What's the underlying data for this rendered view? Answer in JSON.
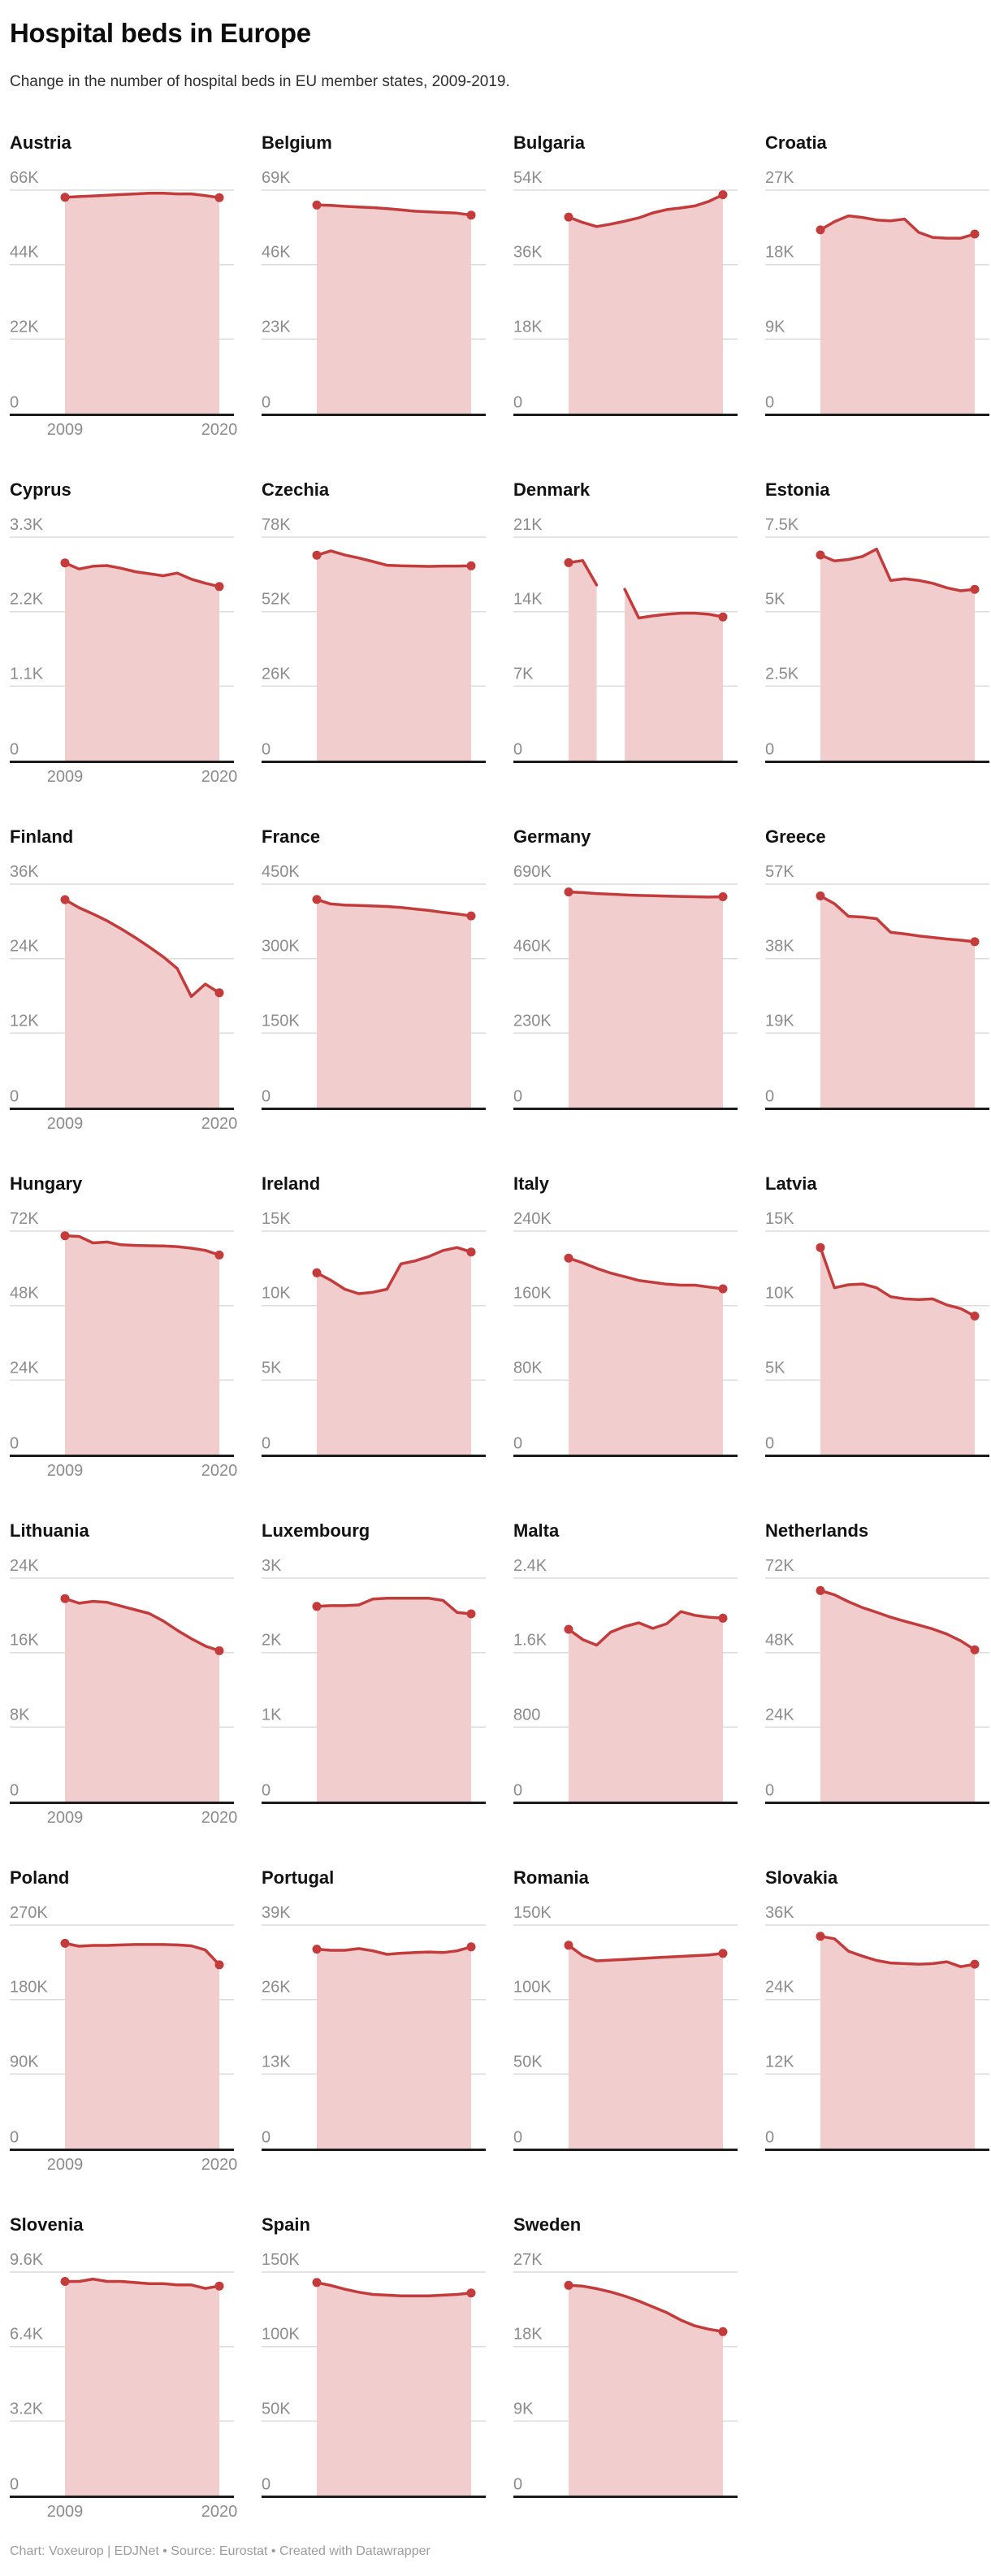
{
  "header": {
    "title": "Hospital beds in Europe",
    "subtitle": "Change in the number of hospital beds in EU member states, 2009-2019."
  },
  "axis": {
    "start_year": "2009",
    "end_year": "2020"
  },
  "footer": {
    "text": "Chart: Voxeurop | EDJNet • Source: Eurostat • Created with Datawrapper"
  },
  "colors": {
    "line": "#c43b3c",
    "fill": "#f1cdcd",
    "grid": "#dcdcdc",
    "baseline": "#1c1c1c",
    "tick_text": "#8c8c8c"
  },
  "chart_data": {
    "type": "area",
    "x": [
      2009,
      2010,
      2011,
      2012,
      2013,
      2014,
      2015,
      2016,
      2017,
      2018,
      2019,
      2020
    ],
    "unit": "thousands_of_beds",
    "legend_position": "none",
    "grid": true,
    "charts": [
      {
        "name": "Austria",
        "ticks": [
          "66K",
          "44K",
          "22K",
          "0"
        ],
        "ymax": 66,
        "values": [
          63.9,
          64.1,
          64.3,
          64.5,
          64.7,
          64.9,
          65.1,
          65.1,
          64.9,
          64.9,
          64.4,
          63.8
        ]
      },
      {
        "name": "Belgium",
        "ticks": [
          "69K",
          "46K",
          "23K",
          "0"
        ],
        "ymax": 69,
        "values": [
          64.4,
          64.3,
          64.0,
          63.8,
          63.6,
          63.3,
          62.9,
          62.5,
          62.3,
          62.1,
          61.9,
          61.3
        ]
      },
      {
        "name": "Bulgaria",
        "ticks": [
          "54K",
          "36K",
          "18K",
          "0"
        ],
        "ymax": 54,
        "values": [
          47.5,
          46.2,
          45.2,
          45.8,
          46.5,
          47.3,
          48.5,
          49.3,
          49.7,
          50.2,
          51.3,
          52.9
        ]
      },
      {
        "name": "Croatia",
        "ticks": [
          "27K",
          "18K",
          "9K",
          "0"
        ],
        "ymax": 27,
        "values": [
          22.2,
          23.2,
          23.9,
          23.7,
          23.4,
          23.3,
          23.5,
          21.9,
          21.3,
          21.2,
          21.2,
          21.7
        ]
      },
      {
        "name": "Cyprus",
        "ticks": [
          "3.3K",
          "2.2K",
          "1.1K",
          "0"
        ],
        "ymax": 3.3,
        "values": [
          2.92,
          2.83,
          2.87,
          2.88,
          2.84,
          2.79,
          2.76,
          2.73,
          2.77,
          2.68,
          2.62,
          2.57
        ]
      },
      {
        "name": "Czechia",
        "ticks": [
          "78K",
          "52K",
          "26K",
          "0"
        ],
        "ymax": 78,
        "values": [
          71.7,
          73.2,
          71.8,
          70.7,
          69.5,
          68.2,
          68.0,
          67.9,
          67.8,
          67.9,
          67.9,
          68.0
        ]
      },
      {
        "name": "Denmark",
        "ticks": [
          "21K",
          "14K",
          "7K",
          "0"
        ],
        "ymax": 21,
        "values": [
          18.6,
          18.8,
          16.5,
          null,
          16.1,
          13.4,
          13.6,
          13.75,
          13.85,
          13.85,
          13.75,
          13.5
        ]
      },
      {
        "name": "Estonia",
        "ticks": [
          "7.5K",
          "5K",
          "2.5K",
          "0"
        ],
        "ymax": 7.5,
        "values": [
          6.9,
          6.7,
          6.75,
          6.85,
          7.1,
          6.05,
          6.1,
          6.05,
          5.95,
          5.8,
          5.7,
          5.75
        ]
      },
      {
        "name": "Finland",
        "ticks": [
          "36K",
          "24K",
          "12K",
          "0"
        ],
        "ymax": 36,
        "values": [
          33.5,
          32.2,
          31.2,
          30.1,
          28.8,
          27.4,
          25.9,
          24.3,
          22.4,
          17.9,
          19.9,
          18.5
        ]
      },
      {
        "name": "France",
        "ticks": [
          "450K",
          "300K",
          "150K",
          "0"
        ],
        "ymax": 450,
        "values": [
          419,
          410,
          408,
          407,
          406,
          405,
          403,
          400,
          397,
          393,
          390,
          386
        ]
      },
      {
        "name": "Germany",
        "ticks": [
          "690K",
          "460K",
          "230K",
          "0"
        ],
        "ymax": 690,
        "values": [
          666,
          664,
          661,
          659,
          657,
          655,
          654,
          653,
          652,
          651,
          650,
          651
        ]
      },
      {
        "name": "Greece",
        "ticks": [
          "57K",
          "38K",
          "19K",
          "0"
        ],
        "ymax": 57,
        "values": [
          54.0,
          52.0,
          48.8,
          48.6,
          48.2,
          44.7,
          44.3,
          43.8,
          43.4,
          43.0,
          42.7,
          42.3
        ]
      },
      {
        "name": "Hungary",
        "ticks": [
          "72K",
          "48K",
          "24K",
          "0"
        ],
        "ymax": 72,
        "values": [
          70.5,
          70.3,
          68.2,
          68.5,
          67.6,
          67.4,
          67.3,
          67.2,
          67.0,
          66.5,
          65.8,
          64.3
        ]
      },
      {
        "name": "Ireland",
        "ticks": [
          "15K",
          "10K",
          "5K",
          "0"
        ],
        "ymax": 15,
        "values": [
          12.2,
          11.7,
          11.1,
          10.8,
          10.9,
          11.1,
          12.8,
          13.0,
          13.3,
          13.7,
          13.9,
          13.6
        ]
      },
      {
        "name": "Italy",
        "ticks": [
          "240K",
          "160K",
          "80K",
          "0"
        ],
        "ymax": 240,
        "values": [
          211,
          206,
          200,
          195,
          191,
          187,
          185,
          183,
          182,
          182,
          180,
          178
        ]
      },
      {
        "name": "Latvia",
        "ticks": [
          "15K",
          "10K",
          "5K",
          "0"
        ],
        "ymax": 15,
        "values": [
          13.9,
          11.2,
          11.4,
          11.45,
          11.2,
          10.6,
          10.45,
          10.4,
          10.45,
          10.05,
          9.8,
          9.3
        ]
      },
      {
        "name": "Lithuania",
        "ticks": [
          "24K",
          "16K",
          "8K",
          "0"
        ],
        "ymax": 24,
        "values": [
          21.8,
          21.3,
          21.5,
          21.4,
          21.0,
          20.6,
          20.2,
          19.4,
          18.4,
          17.5,
          16.7,
          16.2
        ]
      },
      {
        "name": "Luxembourg",
        "ticks": [
          "3K",
          "2K",
          "1K",
          "0"
        ],
        "ymax": 3,
        "values": [
          2.62,
          2.63,
          2.63,
          2.64,
          2.72,
          2.73,
          2.73,
          2.73,
          2.73,
          2.7,
          2.54,
          2.52
        ]
      },
      {
        "name": "Malta",
        "ticks": [
          "2.4K",
          "1.6K",
          "800",
          "0"
        ],
        "ymax": 2.4,
        "values": [
          1.85,
          1.74,
          1.68,
          1.82,
          1.88,
          1.92,
          1.86,
          1.91,
          2.04,
          2.0,
          1.98,
          1.97
        ]
      },
      {
        "name": "Netherlands",
        "ticks": [
          "72K",
          "48K",
          "24K",
          "0"
        ],
        "ymax": 72,
        "values": [
          68.0,
          66.6,
          64.4,
          62.5,
          61.0,
          59.4,
          58.1,
          56.9,
          55.6,
          54.0,
          51.8,
          48.9
        ]
      },
      {
        "name": "Poland",
        "ticks": [
          "270K",
          "180K",
          "90K",
          "0"
        ],
        "ymax": 270,
        "values": [
          248,
          244.5,
          245.5,
          245.5,
          246,
          246.5,
          246.5,
          246.5,
          246,
          245,
          240,
          222
        ]
      },
      {
        "name": "Portugal",
        "ticks": [
          "39K",
          "26K",
          "13K",
          "0"
        ],
        "ymax": 39,
        "values": [
          34.8,
          34.6,
          34.6,
          34.9,
          34.5,
          33.9,
          34.1,
          34.2,
          34.3,
          34.2,
          34.5,
          35.2
        ]
      },
      {
        "name": "Romania",
        "ticks": [
          "150K",
          "100K",
          "50K",
          "0"
        ],
        "ymax": 150,
        "values": [
          136.5,
          129.5,
          126,
          126.5,
          127,
          127.5,
          128,
          128.5,
          129,
          129.5,
          130,
          131
        ]
      },
      {
        "name": "Slovakia",
        "ticks": [
          "36K",
          "24K",
          "12K",
          "0"
        ],
        "ymax": 36,
        "values": [
          34.2,
          33.8,
          31.8,
          31.0,
          30.3,
          29.9,
          29.8,
          29.7,
          29.8,
          30.1,
          29.3,
          29.7
        ]
      },
      {
        "name": "Slovenia",
        "ticks": [
          "9.6K",
          "6.4K",
          "3.2K",
          "0"
        ],
        "ymax": 9.6,
        "values": [
          9.2,
          9.2,
          9.3,
          9.2,
          9.2,
          9.15,
          9.1,
          9.1,
          9.05,
          9.05,
          8.9,
          9.0
        ]
      },
      {
        "name": "Spain",
        "ticks": [
          "150K",
          "100K",
          "50K",
          "0"
        ],
        "ymax": 150,
        "values": [
          143,
          141,
          138.5,
          136.5,
          135,
          134.5,
          134,
          134,
          134,
          134.5,
          135,
          136
        ]
      },
      {
        "name": "Sweden",
        "ticks": [
          "27K",
          "18K",
          "9K",
          "0"
        ],
        "ymax": 27,
        "values": [
          25.4,
          25.3,
          25.0,
          24.6,
          24.1,
          23.5,
          22.8,
          22.1,
          21.2,
          20.5,
          20.1,
          19.8
        ]
      }
    ]
  }
}
